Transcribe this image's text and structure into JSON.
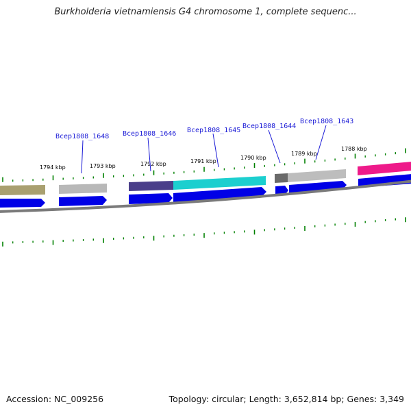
{
  "title": "Burkholderia vietnamiensis G4 chromosome 1, complete sequenc...",
  "footer": {
    "accession": "Accession: NC_009256",
    "summary": "Topology: circular; Length: 3,652,814 bp; Genes: 3,349"
  },
  "map": {
    "colors": {
      "backbone": "#7a7a7a",
      "cds_blue": "#0000e6",
      "tick": "#008000",
      "label": "#1a1ad6"
    },
    "kbp_ticks": [
      "1794 kbp",
      "1793 kbp",
      "1792 kbp",
      "1791 kbp",
      "1790 kbp",
      "1789 kbp",
      "1788 kbp"
    ],
    "gene_labels": [
      "Bcep1808_1648",
      "Bcep1808_1646",
      "Bcep1808_1645",
      "Bcep1808_1644",
      "Bcep1808_1643"
    ],
    "feature_colors": [
      "#a9a070",
      "#b8b8b8",
      "#4a3f8a",
      "#1ccfcf",
      "#6a6a6a",
      "#bdbdbd",
      "#ee1a8a"
    ]
  }
}
